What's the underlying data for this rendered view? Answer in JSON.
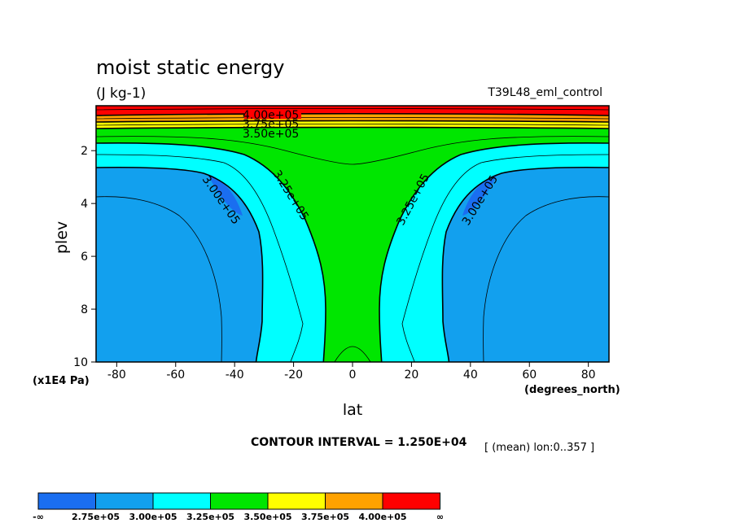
{
  "chart_data": {
    "type": "contour",
    "title": "moist static energy",
    "units": "(J kg-1)",
    "experiment": "T39L48_eml_control",
    "xlabel": "lat",
    "x_units": "(degrees_north)",
    "ylabel": "plev",
    "y_units": "(x1E4 Pa)",
    "xlim": [
      -87,
      87
    ],
    "ylim": [
      10,
      0.3
    ],
    "x_ticks": [
      "-80",
      "-60",
      "-40",
      "-20",
      "0",
      "20",
      "40",
      "60",
      "80"
    ],
    "x_tick_values": [
      -80,
      -60,
      -40,
      -20,
      0,
      20,
      40,
      60,
      80
    ],
    "y_ticks": [
      "2",
      "4",
      "6",
      "8",
      "10"
    ],
    "y_tick_values": [
      2,
      4,
      6,
      8,
      10
    ],
    "contour_interval_text": "CONTOUR INTERVAL = 1.250E+04",
    "mean_text": "[ (mean) lon:0..357 ]",
    "contour_labels": [
      "4.00e+05",
      "3.75e+05",
      "3.50e+05",
      "3.25e+05",
      "3.00e+05",
      "3.25e+05",
      "3.00e+05"
    ],
    "colorbar": {
      "colors": [
        "#1a6ef0",
        "#12a0ee",
        "#00ffff",
        "#00e600",
        "#ffff00",
        "#ffa200",
        "#ff0000"
      ],
      "labels": [
        "-∞",
        "2.75e+05",
        "3.00e+05",
        "3.25e+05",
        "3.50e+05",
        "3.75e+05",
        "4.00e+05",
        "∞"
      ]
    }
  }
}
